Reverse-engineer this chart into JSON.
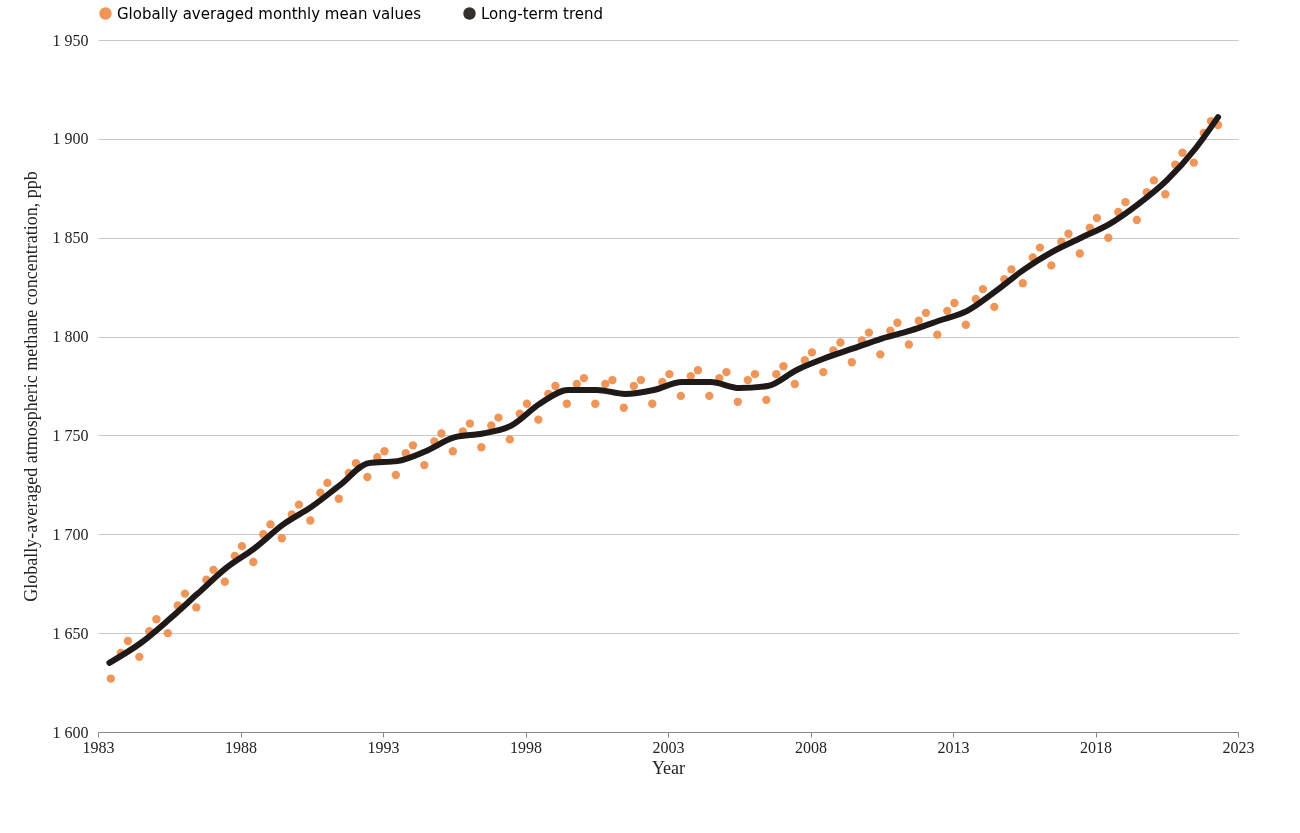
{
  "chart_data": {
    "type": "scatter",
    "xlabel": "Year",
    "ylabel": "Globally-averaged  atmospheric methane concentration, ppb",
    "xlim": [
      1983,
      2023
    ],
    "xticks": [
      1983,
      1988,
      1993,
      1998,
      2003,
      2008,
      2013,
      2018,
      2023
    ],
    "ylim": [
      1600,
      1950
    ],
    "yticks": [
      {
        "value": 1600,
        "label": "1 600"
      },
      {
        "value": 1650,
        "label": "1 650"
      },
      {
        "value": 1700,
        "label": "1 700"
      },
      {
        "value": 1750,
        "label": "1 750"
      },
      {
        "value": 1800,
        "label": "1 800"
      },
      {
        "value": 1850,
        "label": "1 850"
      },
      {
        "value": 1900,
        "label": "1 900"
      },
      {
        "value": 1950,
        "label": "1 950"
      }
    ],
    "grid": "y",
    "legend": "top",
    "series": [
      {
        "name": "Globally averaged monthly mean values",
        "marker": "circle",
        "color": "#ed8a45",
        "x": [
          1983.45,
          1983.8,
          1984.05,
          1984.45,
          1984.8,
          1985.05,
          1985.45,
          1985.8,
          1986.05,
          1986.45,
          1986.8,
          1987.05,
          1987.45,
          1987.8,
          1988.05,
          1988.45,
          1988.8,
          1989.05,
          1989.45,
          1989.8,
          1990.05,
          1990.45,
          1990.8,
          1991.05,
          1991.45,
          1991.8,
          1992.05,
          1992.45,
          1992.8,
          1993.05,
          1993.45,
          1993.8,
          1994.05,
          1994.45,
          1994.8,
          1995.05,
          1995.45,
          1995.8,
          1996.05,
          1996.45,
          1996.8,
          1997.05,
          1997.45,
          1997.8,
          1998.05,
          1998.45,
          1998.8,
          1999.05,
          1999.45,
          1999.8,
          2000.05,
          2000.45,
          2000.8,
          2001.05,
          2001.45,
          2001.8,
          2002.05,
          2002.45,
          2002.8,
          2003.05,
          2003.45,
          2003.8,
          2004.05,
          2004.45,
          2004.8,
          2005.05,
          2005.45,
          2005.8,
          2006.05,
          2006.45,
          2006.8,
          2007.05,
          2007.45,
          2007.8,
          2008.05,
          2008.45,
          2008.8,
          2009.05,
          2009.45,
          2009.8,
          2010.05,
          2010.45,
          2010.8,
          2011.05,
          2011.45,
          2011.8,
          2012.05,
          2012.45,
          2012.8,
          2013.05,
          2013.45,
          2013.8,
          2014.05,
          2014.45,
          2014.8,
          2015.05,
          2015.45,
          2015.8,
          2016.05,
          2016.45,
          2016.8,
          2017.05,
          2017.45,
          2017.8,
          2018.05,
          2018.45,
          2018.8,
          2019.05,
          2019.45,
          2019.8,
          2020.05,
          2020.45,
          2020.8,
          2021.05,
          2021.45,
          2021.8,
          2022.05,
          2022.3
        ],
        "values": [
          1627,
          1640,
          1646,
          1638,
          1651,
          1657,
          1650,
          1664,
          1670,
          1663,
          1677,
          1682,
          1676,
          1689,
          1694,
          1686,
          1700,
          1705,
          1698,
          1710,
          1715,
          1707,
          1721,
          1726,
          1718,
          1731,
          1736,
          1729,
          1739,
          1742,
          1730,
          1741,
          1745,
          1735,
          1747,
          1751,
          1742,
          1752,
          1756,
          1744,
          1755,
          1759,
          1748,
          1761,
          1766,
          1758,
          1771,
          1775,
          1766,
          1776,
          1779,
          1766,
          1776,
          1778,
          1764,
          1775,
          1778,
          1766,
          1777,
          1781,
          1770,
          1780,
          1783,
          1770,
          1779,
          1782,
          1767,
          1778,
          1781,
          1768,
          1781,
          1785,
          1776,
          1788,
          1792,
          1782,
          1793,
          1797,
          1787,
          1798,
          1802,
          1791,
          1803,
          1807,
          1796,
          1808,
          1812,
          1801,
          1813,
          1817,
          1806,
          1819,
          1824,
          1815,
          1829,
          1834,
          1827,
          1840,
          1845,
          1836,
          1848,
          1852,
          1842,
          1855,
          1860,
          1850,
          1863,
          1868,
          1859,
          1873,
          1879,
          1872,
          1887,
          1893,
          1888,
          1903,
          1909,
          1907
        ]
      },
      {
        "name": "Long-term trend",
        "type": "line",
        "color": "#1f1a17",
        "x": [
          1983.4,
          1984.5,
          1985.5,
          1986.5,
          1987.5,
          1988.5,
          1989.5,
          1990.5,
          1991.5,
          1992.5,
          1993.5,
          1994.5,
          1995.5,
          1996.5,
          1997.5,
          1998.5,
          1999.5,
          2000.5,
          2001.5,
          2002.5,
          2003.5,
          2004.5,
          2005.5,
          2006.5,
          2007.5,
          2008.5,
          2009.5,
          2010.5,
          2011.5,
          2012.5,
          2013.5,
          2014.5,
          2015.5,
          2016.5,
          2017.5,
          2018.5,
          2019.5,
          2020.5,
          2021.5,
          2022.3
        ],
        "values": [
          1635,
          1645,
          1657,
          1670,
          1683,
          1693,
          1705,
          1714,
          1725,
          1736,
          1737,
          1742,
          1749,
          1751,
          1755,
          1766,
          1773,
          1773,
          1771,
          1773,
          1777,
          1777,
          1774,
          1775,
          1783,
          1789,
          1794,
          1799,
          1803,
          1808,
          1813,
          1823,
          1834,
          1843,
          1850,
          1857,
          1867,
          1879,
          1895,
          1911
        ]
      }
    ]
  }
}
